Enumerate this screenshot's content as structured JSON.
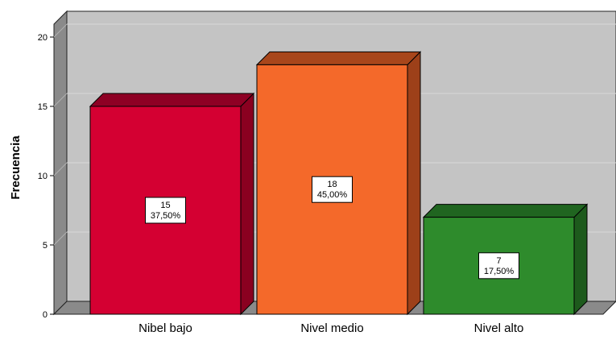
{
  "chart_data": {
    "type": "bar",
    "style": "3d",
    "categories": [
      "Nibel bajo",
      "Nivel medio",
      "Nivel alto"
    ],
    "values": [
      15,
      18,
      7
    ],
    "percent_labels": [
      "37,50%",
      "45,00%",
      "17,50%"
    ],
    "ylabel": "Frecuencia",
    "xlabel": "",
    "ylim": [
      0,
      20
    ],
    "yticks": [
      0,
      5,
      10,
      15,
      20
    ],
    "grid": true,
    "colors": [
      "#d40032",
      "#f4692a",
      "#2e8b2c"
    ],
    "side_colors": [
      "#8a0020",
      "#9d4019",
      "#1d5a1c"
    ],
    "top_colors": [
      "#8e0024",
      "#a8461b",
      "#206520"
    ],
    "plot_background": "#c4c4c4",
    "wall_color": "#8a8a8a"
  }
}
